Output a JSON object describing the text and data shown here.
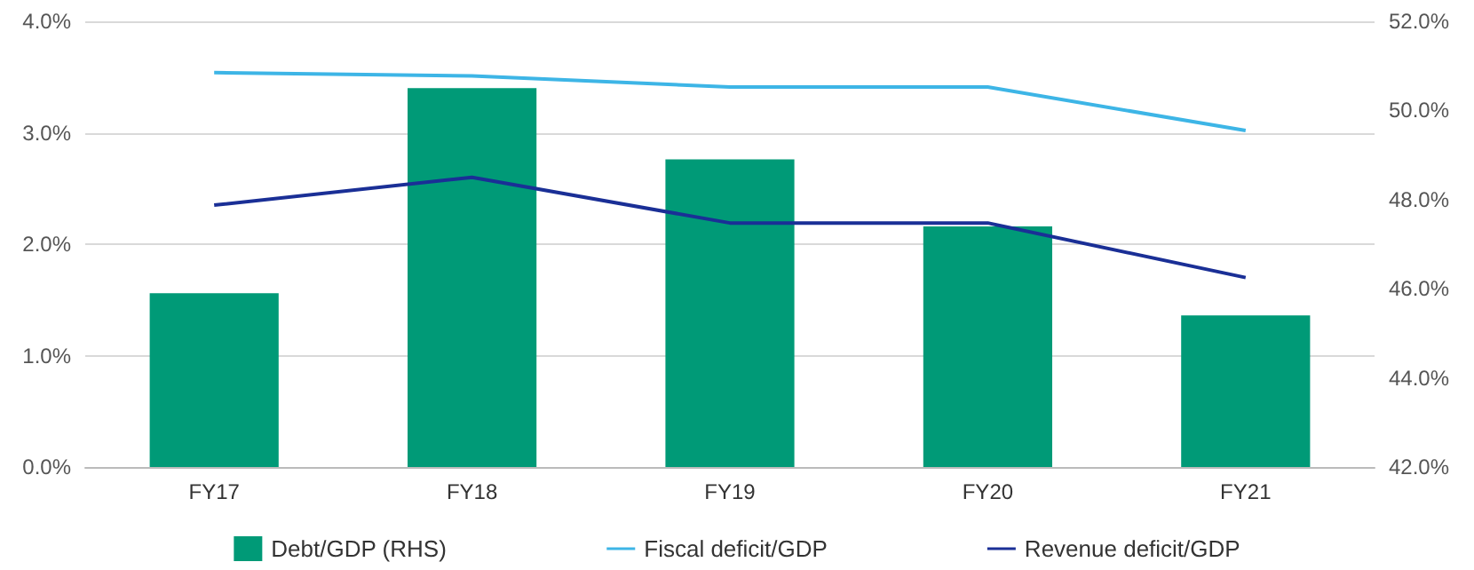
{
  "chart_data": {
    "type": "bar",
    "categories": [
      "FY17",
      "FY18",
      "FY19",
      "FY20",
      "FY21"
    ],
    "series": [
      {
        "name": "Debt/GDP (RHS)",
        "axis": "y2",
        "color": "#009a77",
        "values": [
          45.9,
          50.5,
          48.9,
          47.4,
          45.4
        ]
      },
      {
        "name": "Fiscal deficit/GDP",
        "type": "line",
        "color": "#3db5e6",
        "values": [
          3.54,
          3.51,
          3.41,
          3.41,
          3.02
        ]
      },
      {
        "name": "Revenue deficit/GDP",
        "type": "line",
        "color": "#1a2f96",
        "values": [
          2.35,
          2.6,
          2.19,
          2.19,
          1.7
        ]
      }
    ],
    "ylim": [
      0,
      4
    ],
    "yticks": [
      {
        "value": 0,
        "label": "0.0%"
      },
      {
        "value": 1,
        "label": "1.0%"
      },
      {
        "value": 2,
        "label": "2.0%"
      },
      {
        "value": 3,
        "label": "3.0%"
      },
      {
        "value": 4,
        "label": "4.0%"
      }
    ],
    "y2lim": [
      42,
      52
    ],
    "y2ticks": [
      {
        "value": 42,
        "label": "42.0%"
      },
      {
        "value": 44,
        "label": "44.0%"
      },
      {
        "value": 46,
        "label": "46.0%"
      },
      {
        "value": 48,
        "label": "48.0%"
      },
      {
        "value": 50,
        "label": "50.0%"
      },
      {
        "value": 52,
        "label": "52.0%"
      }
    ],
    "grid": "y",
    "legend": "bottom",
    "marker": "none",
    "line_style": "solid"
  }
}
